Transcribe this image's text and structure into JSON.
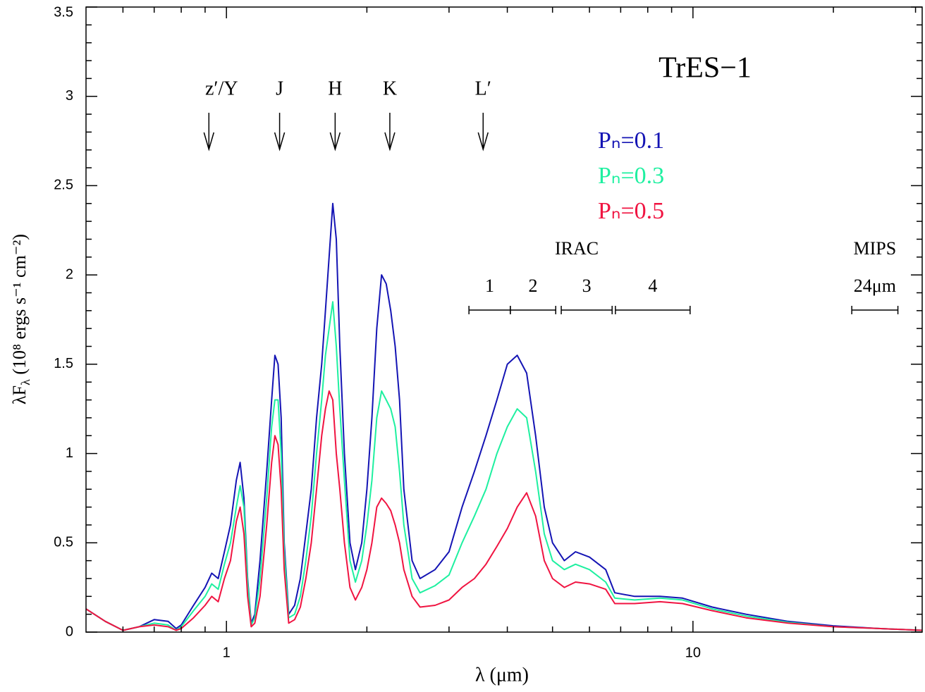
{
  "chart_data": {
    "type": "line",
    "title": "TrES−1",
    "xlabel": "λ (μm)",
    "ylabel": {
      "main": "λF",
      "sub": "λ",
      "rest": " (10⁸ ergs s⁻¹ cm⁻²)"
    },
    "xlog": true,
    "xlim": [
      0.5,
      31
    ],
    "ylim": [
      0,
      3.5
    ],
    "xticks": [
      1,
      10
    ],
    "xminorticks": [
      0.6,
      0.7,
      0.8,
      0.9,
      2,
      3,
      4,
      5,
      6,
      7,
      8,
      9,
      20,
      30
    ],
    "yticks": [
      0,
      0.5,
      1,
      1.5,
      2,
      2.5,
      3,
      3.5
    ],
    "yminorticks": [
      0.1,
      0.2,
      0.3,
      0.4,
      0.6,
      0.7,
      0.8,
      0.9,
      1.1,
      1.2,
      1.3,
      1.4,
      1.6,
      1.7,
      1.8,
      1.9,
      2.1,
      2.2,
      2.3,
      2.4,
      2.6,
      2.7,
      2.8,
      2.9,
      3.1,
      3.2,
      3.3,
      3.4
    ],
    "x": [
      0.5,
      0.55,
      0.6,
      0.65,
      0.7,
      0.75,
      0.78,
      0.8,
      0.85,
      0.9,
      0.93,
      0.96,
      0.99,
      1.02,
      1.05,
      1.07,
      1.09,
      1.11,
      1.13,
      1.15,
      1.18,
      1.22,
      1.25,
      1.27,
      1.29,
      1.31,
      1.33,
      1.36,
      1.4,
      1.44,
      1.48,
      1.52,
      1.56,
      1.6,
      1.63,
      1.66,
      1.69,
      1.72,
      1.75,
      1.79,
      1.84,
      1.89,
      1.95,
      2.0,
      2.05,
      2.1,
      2.15,
      2.2,
      2.25,
      2.3,
      2.35,
      2.4,
      2.5,
      2.6,
      2.8,
      3.0,
      3.2,
      3.4,
      3.6,
      3.8,
      4.0,
      4.2,
      4.4,
      4.6,
      4.8,
      5.0,
      5.3,
      5.6,
      6.0,
      6.5,
      6.8,
      7.5,
      8.5,
      9.5,
      11,
      13,
      16,
      20,
      25,
      31
    ],
    "series": [
      {
        "name": "Pₙ=0.1",
        "color": "#1414b4",
        "values": [
          0.13,
          0.06,
          0.01,
          0.03,
          0.07,
          0.06,
          0.02,
          0.04,
          0.15,
          0.25,
          0.33,
          0.3,
          0.45,
          0.6,
          0.85,
          0.95,
          0.75,
          0.3,
          0.05,
          0.1,
          0.4,
          0.9,
          1.3,
          1.55,
          1.5,
          1.2,
          0.5,
          0.1,
          0.15,
          0.3,
          0.55,
          0.8,
          1.2,
          1.5,
          1.8,
          2.1,
          2.4,
          2.2,
          1.6,
          1.0,
          0.5,
          0.35,
          0.5,
          0.8,
          1.2,
          1.7,
          2.0,
          1.95,
          1.8,
          1.6,
          1.3,
          0.8,
          0.4,
          0.3,
          0.35,
          0.45,
          0.7,
          0.9,
          1.1,
          1.3,
          1.5,
          1.55,
          1.45,
          1.1,
          0.7,
          0.5,
          0.4,
          0.45,
          0.42,
          0.35,
          0.22,
          0.2,
          0.2,
          0.19,
          0.14,
          0.1,
          0.06,
          0.035,
          0.02,
          0.01
        ]
      },
      {
        "name": "Pₙ=0.3",
        "color": "#1ef0a0",
        "values": [
          0.13,
          0.06,
          0.01,
          0.03,
          0.05,
          0.04,
          0.01,
          0.03,
          0.12,
          0.2,
          0.27,
          0.24,
          0.38,
          0.5,
          0.7,
          0.82,
          0.7,
          0.28,
          0.04,
          0.08,
          0.3,
          0.75,
          1.15,
          1.3,
          1.3,
          1.0,
          0.45,
          0.08,
          0.1,
          0.2,
          0.4,
          0.65,
          1.0,
          1.3,
          1.55,
          1.7,
          1.85,
          1.6,
          1.25,
          0.85,
          0.4,
          0.28,
          0.4,
          0.6,
          0.85,
          1.2,
          1.35,
          1.3,
          1.25,
          1.15,
          0.9,
          0.6,
          0.3,
          0.22,
          0.26,
          0.32,
          0.5,
          0.65,
          0.8,
          1.0,
          1.15,
          1.25,
          1.2,
          0.9,
          0.55,
          0.4,
          0.35,
          0.38,
          0.35,
          0.28,
          0.19,
          0.18,
          0.19,
          0.18,
          0.13,
          0.09,
          0.055,
          0.03,
          0.02,
          0.01
        ]
      },
      {
        "name": "Pₙ=0.5",
        "color": "#f01441",
        "values": [
          0.13,
          0.06,
          0.01,
          0.03,
          0.04,
          0.03,
          0.01,
          0.02,
          0.08,
          0.15,
          0.2,
          0.17,
          0.3,
          0.4,
          0.62,
          0.7,
          0.55,
          0.2,
          0.03,
          0.05,
          0.2,
          0.6,
          0.95,
          1.1,
          1.05,
          0.8,
          0.35,
          0.05,
          0.07,
          0.14,
          0.3,
          0.5,
          0.8,
          1.1,
          1.25,
          1.35,
          1.3,
          1.0,
          0.8,
          0.5,
          0.25,
          0.18,
          0.25,
          0.35,
          0.5,
          0.7,
          0.75,
          0.72,
          0.68,
          0.6,
          0.5,
          0.35,
          0.2,
          0.14,
          0.15,
          0.18,
          0.25,
          0.3,
          0.38,
          0.48,
          0.58,
          0.7,
          0.78,
          0.65,
          0.4,
          0.3,
          0.25,
          0.28,
          0.27,
          0.24,
          0.16,
          0.16,
          0.17,
          0.16,
          0.12,
          0.08,
          0.05,
          0.03,
          0.02,
          0.01
        ]
      }
    ],
    "bands": [
      {
        "label": "z′/Y",
        "x": 0.917
      },
      {
        "label": "J",
        "x": 1.3
      },
      {
        "label": "H",
        "x": 1.71
      },
      {
        "label": "K",
        "x": 2.24
      },
      {
        "label": "L′",
        "x": 3.55
      }
    ],
    "irac": {
      "label": "IRAC",
      "channels": [
        {
          "label": "1",
          "range": [
            3.31,
            4.06
          ]
        },
        {
          "label": "2",
          "range": [
            4.06,
            5.08
          ]
        },
        {
          "label": "3",
          "range": [
            5.22,
            6.71
          ]
        },
        {
          "label": "4",
          "range": [
            6.82,
            9.86
          ]
        }
      ]
    },
    "mips": {
      "label": "MIPS",
      "sublabel": "24μm",
      "range": [
        21.9,
        27.5
      ]
    }
  }
}
